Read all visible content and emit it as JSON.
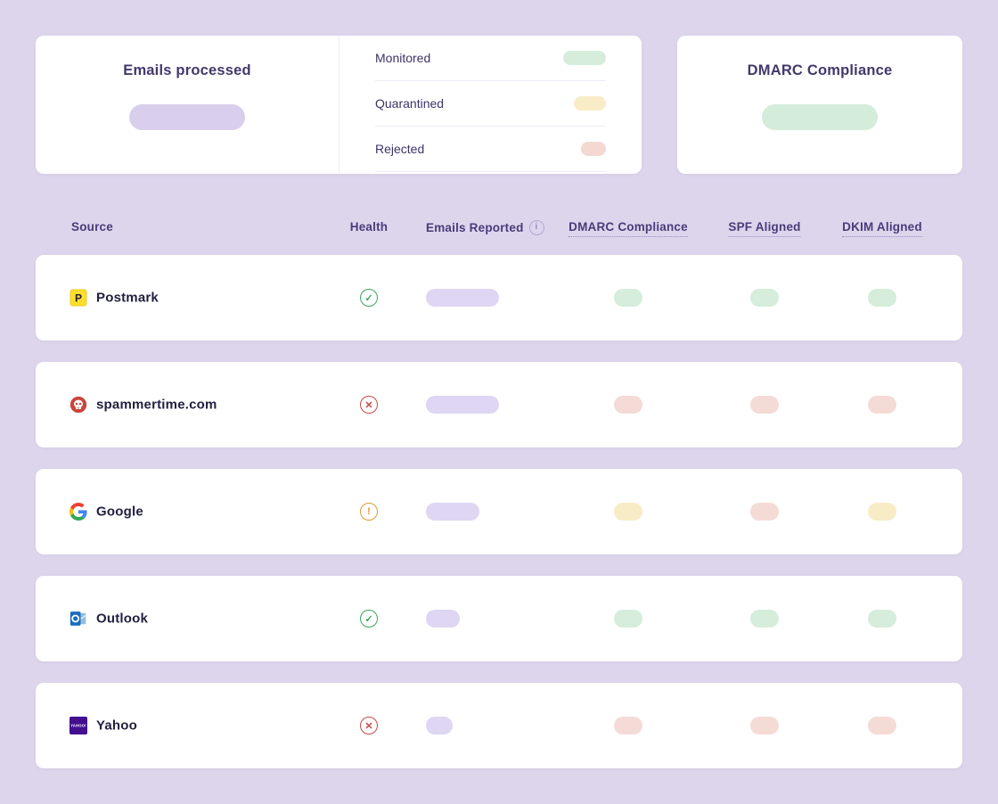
{
  "cards": {
    "emails_processed": {
      "title": "Emails processed",
      "placeholder_color": "#d9cfec"
    },
    "legend": {
      "items": [
        {
          "label": "Monitored",
          "status": "monitored",
          "color": "#d5edda",
          "pill_width": 48
        },
        {
          "label": "Quarantined",
          "status": "quarantined",
          "color": "#f8ecc7",
          "pill_width": 36
        },
        {
          "label": "Rejected",
          "status": "rejected",
          "color": "#f3d9d2",
          "pill_width": 28
        }
      ]
    },
    "dmarc_compliance": {
      "title": "DMARC Compliance",
      "placeholder_color": "#d4ecda"
    }
  },
  "table": {
    "headers": {
      "source": "Source",
      "health": "Health",
      "emails_reported": "Emails Reported",
      "dmarc": "DMARC Compliance",
      "spf": "SPF Aligned",
      "dkim": "DKIM Aligned"
    },
    "info_icon_glyph": "i",
    "rows": [
      {
        "source": "Postmark",
        "icon": "postmark",
        "health": "healthy",
        "emails_reported_width": 82,
        "dmarc": "pass",
        "spf": "pass",
        "dkim": "pass"
      },
      {
        "source": "spammertime.com",
        "icon": "spammertime",
        "health": "critical",
        "emails_reported_width": 82,
        "dmarc": "fail",
        "spf": "fail",
        "dkim": "fail"
      },
      {
        "source": "Google",
        "icon": "google",
        "health": "warning",
        "emails_reported_width": 60,
        "dmarc": "warn",
        "spf": "fail",
        "dkim": "warn"
      },
      {
        "source": "Outlook",
        "icon": "outlook",
        "health": "healthy",
        "emails_reported_width": 38,
        "dmarc": "pass",
        "spf": "pass",
        "dkim": "pass"
      },
      {
        "source": "Yahoo",
        "icon": "yahoo",
        "health": "critical",
        "emails_reported_width": 30,
        "dmarc": "fail",
        "spf": "fail",
        "dkim": "fail"
      }
    ]
  },
  "status_colors": {
    "pass": "#d5edda",
    "warn": "#f8ecc7",
    "fail": "#f5dbd6",
    "reported": "#ded6f2"
  },
  "health_styles": {
    "healthy": {
      "glyph": "✓",
      "color": "#3ca55c"
    },
    "critical": {
      "glyph": "✕",
      "color": "#c64a45"
    },
    "warning": {
      "glyph": "!",
      "color": "#dd9b32"
    }
  },
  "background_color": "#ddd5ec"
}
